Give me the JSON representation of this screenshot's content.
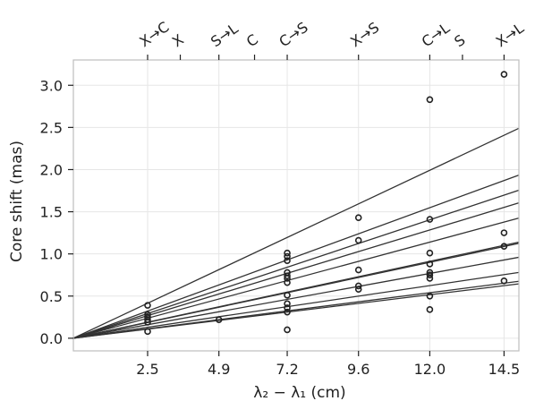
{
  "chart_data": {
    "type": "scatter",
    "title": "",
    "xlabel": "λ₂ − λ₁ (cm)",
    "ylabel": "Core shift (mas)",
    "xlim": [
      0,
      15
    ],
    "ylim": [
      -0.15,
      3.3
    ],
    "grid": true,
    "x_ticks": [
      {
        "value": 2.5,
        "label": "2.5"
      },
      {
        "value": 4.9,
        "label": "4.9"
      },
      {
        "value": 7.2,
        "label": "7.2"
      },
      {
        "value": 9.6,
        "label": "9.6"
      },
      {
        "value": 12.0,
        "label": "12.0"
      },
      {
        "value": 14.5,
        "label": "14.5"
      }
    ],
    "y_ticks": [
      {
        "value": 0.0,
        "label": "0.0"
      },
      {
        "value": 0.5,
        "label": "0.5"
      },
      {
        "value": 1.0,
        "label": "1.0"
      },
      {
        "value": 1.5,
        "label": "1.5"
      },
      {
        "value": 2.0,
        "label": "2.0"
      },
      {
        "value": 2.5,
        "label": "2.5"
      },
      {
        "value": 3.0,
        "label": "3.0"
      }
    ],
    "top_ticks": [
      {
        "value": 2.5,
        "label": "X→C"
      },
      {
        "value": 3.6,
        "label": "X"
      },
      {
        "value": 4.9,
        "label": "S→L"
      },
      {
        "value": 6.1,
        "label": "C"
      },
      {
        "value": 7.2,
        "label": "C→S"
      },
      {
        "value": 9.6,
        "label": "X→S"
      },
      {
        "value": 12.0,
        "label": "C→L"
      },
      {
        "value": 13.1,
        "label": "S"
      },
      {
        "value": 14.5,
        "label": "X→L"
      }
    ],
    "points": [
      {
        "x": 2.5,
        "y": 0.39
      },
      {
        "x": 2.5,
        "y": 0.28
      },
      {
        "x": 2.5,
        "y": 0.25
      },
      {
        "x": 2.5,
        "y": 0.22
      },
      {
        "x": 2.5,
        "y": 0.19
      },
      {
        "x": 2.5,
        "y": 0.08
      },
      {
        "x": 4.9,
        "y": 0.22
      },
      {
        "x": 7.2,
        "y": 1.01
      },
      {
        "x": 7.2,
        "y": 0.97
      },
      {
        "x": 7.2,
        "y": 0.92
      },
      {
        "x": 7.2,
        "y": 0.78
      },
      {
        "x": 7.2,
        "y": 0.74
      },
      {
        "x": 7.2,
        "y": 0.71
      },
      {
        "x": 7.2,
        "y": 0.66
      },
      {
        "x": 7.2,
        "y": 0.51
      },
      {
        "x": 7.2,
        "y": 0.41
      },
      {
        "x": 7.2,
        "y": 0.36
      },
      {
        "x": 7.2,
        "y": 0.31
      },
      {
        "x": 7.2,
        "y": 0.1
      },
      {
        "x": 9.6,
        "y": 1.43
      },
      {
        "x": 9.6,
        "y": 1.16
      },
      {
        "x": 9.6,
        "y": 0.81
      },
      {
        "x": 9.6,
        "y": 0.62
      },
      {
        "x": 9.6,
        "y": 0.58
      },
      {
        "x": 12.0,
        "y": 2.83
      },
      {
        "x": 12.0,
        "y": 1.41
      },
      {
        "x": 12.0,
        "y": 1.01
      },
      {
        "x": 12.0,
        "y": 0.88
      },
      {
        "x": 12.0,
        "y": 0.78
      },
      {
        "x": 12.0,
        "y": 0.75
      },
      {
        "x": 12.0,
        "y": 0.71
      },
      {
        "x": 12.0,
        "y": 0.5
      },
      {
        "x": 12.0,
        "y": 0.34
      },
      {
        "x": 14.5,
        "y": 3.13
      },
      {
        "x": 14.5,
        "y": 1.25
      },
      {
        "x": 14.5,
        "y": 1.09
      },
      {
        "x": 14.5,
        "y": 0.68
      }
    ],
    "fit_lines": [
      {
        "slope": 0.166
      },
      {
        "slope": 0.129
      },
      {
        "slope": 0.117
      },
      {
        "slope": 0.107
      },
      {
        "slope": 0.095
      },
      {
        "slope": 0.076
      },
      {
        "slope": 0.075
      },
      {
        "slope": 0.064
      },
      {
        "slope": 0.052
      },
      {
        "slope": 0.045
      },
      {
        "slope": 0.043
      }
    ],
    "colors": {
      "line": "#333333",
      "marker": "#222222",
      "grid": "#e6e6e6",
      "frame": "#bfbfbf"
    }
  }
}
